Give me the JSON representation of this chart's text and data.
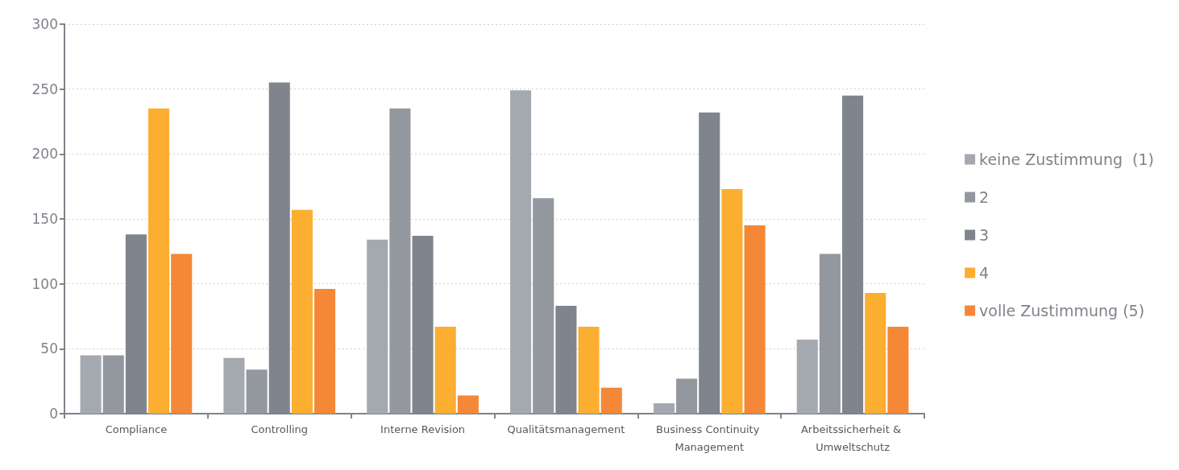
{
  "chart_data": {
    "type": "bar",
    "categories": [
      "Compliance",
      "Controlling",
      "Interne Revision",
      "Qualitätsmanagement",
      "Business Continuity Management",
      "Arbeitssicherheit & Umweltschutz"
    ],
    "series": [
      {
        "name": "keine Zustimmung  (1)",
        "color": "#a4a9af",
        "values": [
          45,
          43,
          134,
          249,
          8,
          57
        ]
      },
      {
        "name": "2",
        "color": "#93979e",
        "values": [
          45,
          34,
          235,
          166,
          27,
          123
        ]
      },
      {
        "name": "3",
        "color": "#80848c",
        "values": [
          138,
          255,
          137,
          83,
          232,
          245
        ]
      },
      {
        "name": "4",
        "color": "#fbae2f",
        "values": [
          235,
          157,
          67,
          67,
          173,
          93
        ]
      },
      {
        "name": "volle Zustimmung (5)",
        "color": "#f48837",
        "values": [
          123,
          96,
          14,
          20,
          145,
          67
        ]
      }
    ],
    "ylim": [
      0,
      300
    ],
    "yticks": [
      0,
      50,
      100,
      150,
      200,
      250,
      300
    ],
    "grid": "y",
    "legend": "right"
  }
}
